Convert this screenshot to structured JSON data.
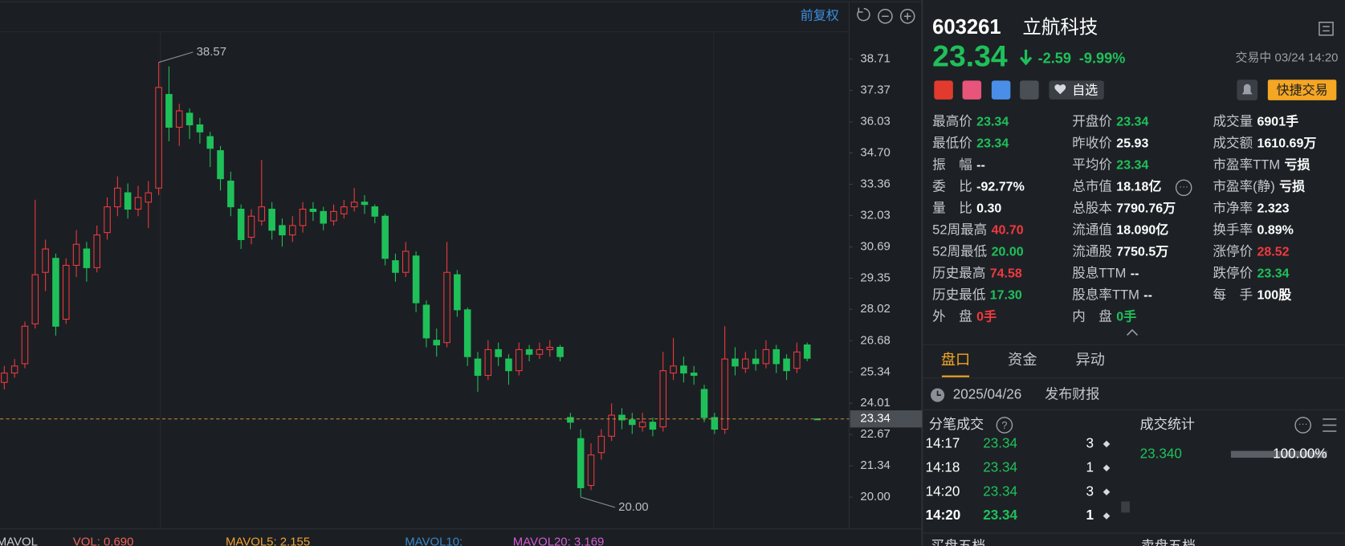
{
  "chart_data": {
    "type": "candlestick",
    "adjust_label": "前复权",
    "ylim": [
      18.9,
      39.77
    ],
    "yticks": [
      38.71,
      37.37,
      36.03,
      {
        "value": 34.7,
        "label": "34.70"
      },
      33.36,
      32.03,
      30.69,
      29.35,
      28.02,
      26.68,
      25.34,
      24.01,
      22.67,
      21.34,
      {
        "value": 20,
        "label": "20.00"
      }
    ],
    "last_price": 23.34,
    "annotations": [
      {
        "text": "38.57",
        "value": 38.57,
        "index": 15
      },
      {
        "text": "20.00",
        "value": 20,
        "index": 56
      }
    ],
    "up_color": "#f0393f",
    "down_color": "#1fc05a",
    "series": [
      {
        "open": [
          24.9,
          25.3,
          25.7,
          27.4,
          29.6,
          30.2,
          27.6,
          29.9,
          30.6,
          29.8,
          31.3,
          32.4,
          33.0,
          32.3,
          32.6,
          33.2,
          37.2,
          35.8,
          36.4,
          35.9,
          35.4,
          34.8,
          33.5,
          32.3,
          31.1,
          31.8,
          32.3,
          31.6,
          31.2,
          31.6,
          32.3,
          32.2,
          31.8,
          32.1,
          32.4,
          32.6,
          32.4,
          32.0,
          30.1,
          29.6,
          30.3,
          28.2,
          26.7,
          26.6,
          29.5,
          28.0,
          25.9,
          25.2,
          26.3,
          25.9,
          25.4,
          26.3,
          26.1,
          26.3,
          26.4,
          23.4,
          22.5,
          20.5,
          21.9,
          22.6,
          23.5,
          23.3,
          23.0,
          23.2,
          23.0,
          25.3,
          25.6,
          25.3,
          24.6,
          23.4,
          22.9,
          25.9,
          25.5,
          25.9,
          25.7,
          26.3,
          25.9,
          25.5,
          26.5,
          23.34
        ],
        "high": [
          25.6,
          25.9,
          27.5,
          32.7,
          31.0,
          30.4,
          30.2,
          31.4,
          30.9,
          31.6,
          32.8,
          33.7,
          33.4,
          33.3,
          33.5,
          38.57,
          38.4,
          36.8,
          36.6,
          36.2,
          35.6,
          35.0,
          33.9,
          32.5,
          32.3,
          34.4,
          32.6,
          31.9,
          32.0,
          32.6,
          32.6,
          32.4,
          32.5,
          32.7,
          33.2,
          32.9,
          32.5,
          32.1,
          30.4,
          30.9,
          30.5,
          28.4,
          27.2,
          30.9,
          29.7,
          28.1,
          26.2,
          26.7,
          26.6,
          26.1,
          26.6,
          26.5,
          26.6,
          26.7,
          26.5,
          23.6,
          22.9,
          22.3,
          22.9,
          24.0,
          23.8,
          23.6,
          23.6,
          23.4,
          26.2,
          26.8,
          26.0,
          25.6,
          24.8,
          23.6,
          27.3,
          26.4,
          26.2,
          26.3,
          26.7,
          26.5,
          26.1,
          26.6,
          26.6,
          23.34
        ],
        "low": [
          24.6,
          25.1,
          25.5,
          27.2,
          28.8,
          26.9,
          27.4,
          29.4,
          29.2,
          29.6,
          31.0,
          32.0,
          31.9,
          32.0,
          31.5,
          32.9,
          35.2,
          35.0,
          35.3,
          35.1,
          34.1,
          33.1,
          32.0,
          30.6,
          30.8,
          31.6,
          31.0,
          30.7,
          30.9,
          31.3,
          31.8,
          31.4,
          31.6,
          31.9,
          32.2,
          32.1,
          31.7,
          29.9,
          29.2,
          29.4,
          27.9,
          26.4,
          26.0,
          26.4,
          27.7,
          25.6,
          24.5,
          25.0,
          25.6,
          24.8,
          25.2,
          25.8,
          25.9,
          26.0,
          25.8,
          22.9,
          20,
          20.3,
          21.6,
          22.4,
          22.9,
          22.7,
          22.8,
          22.6,
          22.8,
          25.0,
          24.9,
          24.8,
          23.2,
          22.7,
          22.7,
          25.2,
          25.3,
          25.4,
          25.5,
          25.3,
          25.0,
          25.3,
          25.8,
          23.34
        ],
        "close": [
          25.3,
          25.6,
          27.3,
          29.5,
          30.6,
          27.3,
          29.9,
          30.8,
          29.8,
          31.2,
          32.4,
          33.2,
          32.3,
          32.8,
          33.0,
          37.5,
          35.8,
          36.5,
          35.9,
          35.6,
          34.9,
          33.6,
          32.4,
          31.0,
          32.0,
          32.4,
          31.4,
          31.2,
          31.6,
          32.3,
          32.2,
          31.7,
          32.2,
          32.4,
          32.6,
          32.5,
          32.0,
          30.2,
          29.6,
          30.5,
          28.3,
          26.8,
          26.5,
          29.6,
          28.0,
          26.0,
          25.2,
          26.3,
          26.0,
          25.4,
          26.3,
          26.1,
          26.3,
          26.4,
          26.0,
          23.2,
          20.4,
          21.8,
          22.6,
          23.5,
          23.3,
          23.1,
          23.2,
          22.9,
          25.4,
          25.6,
          25.3,
          25.2,
          23.4,
          22.9,
          25.9,
          25.6,
          25.9,
          25.7,
          26.3,
          25.7,
          25.4,
          26.2,
          25.93,
          23.34
        ]
      }
    ],
    "indicators": [
      {
        "text": "MAVOL",
        "color": "#c9ccd0"
      },
      {
        "text": "VOL: 0.690",
        "color": "#f0605a"
      },
      {
        "text": "MAVOL5: 2.155",
        "color": "#f0a030"
      },
      {
        "text": "MAVOL10:",
        "color": "#3a86c8"
      },
      {
        "text": "MAVOL20: 3.169",
        "color": "#d45ad4"
      }
    ]
  },
  "header": {
    "code": "603261",
    "name": "立航科技",
    "price": "23.34",
    "change": "-2.59",
    "change_pct": "-9.99%",
    "status": "交易中 03/24 14:20",
    "watch": "自选",
    "quick_trade": "快捷交易"
  },
  "colors": {
    "up": "#f0393f",
    "down": "#1fc05a",
    "flat": "#ffffff"
  },
  "stats": [
    [
      {
        "label": "最高价",
        "value": "23.34",
        "tone": "down"
      },
      {
        "label": "最低价",
        "value": "23.34",
        "tone": "down"
      },
      {
        "label": "振　幅",
        "value": "--",
        "tone": "flat"
      },
      {
        "label": "委　比",
        "value": "-92.77%",
        "tone": "flat"
      },
      {
        "label": "量　比",
        "value": "0.30",
        "tone": "flat"
      },
      {
        "label": "52周最高",
        "value": "40.70",
        "tone": "up"
      },
      {
        "label": "52周最低",
        "value": "20.00",
        "tone": "down"
      },
      {
        "label": "历史最高",
        "value": "74.58",
        "tone": "up"
      },
      {
        "label": "历史最低",
        "value": "17.30",
        "tone": "down"
      },
      {
        "label": "外　盘",
        "value": "0手",
        "tone": "up"
      }
    ],
    [
      {
        "label": "开盘价",
        "value": "23.34",
        "tone": "down"
      },
      {
        "label": "昨收价",
        "value": "25.93",
        "tone": "flat"
      },
      {
        "label": "平均价",
        "value": "23.34",
        "tone": "down"
      },
      {
        "label": "总市值",
        "value": "18.18亿",
        "tone": "flat"
      },
      {
        "label": "总股本",
        "value": "7790.76万",
        "tone": "flat"
      },
      {
        "label": "流通值",
        "value": "18.090亿",
        "tone": "flat"
      },
      {
        "label": "流通股",
        "value": "7750.5万",
        "tone": "flat"
      },
      {
        "label": "股息TTM",
        "value": "--",
        "tone": "flat"
      },
      {
        "label": "股息率TTM",
        "value": "--",
        "tone": "flat"
      },
      {
        "label": "内　盘",
        "value": "0手",
        "tone": "down"
      }
    ],
    [
      {
        "label": "成交量",
        "value": "6901手",
        "tone": "flat"
      },
      {
        "label": "成交额",
        "value": "1610.69万",
        "tone": "flat"
      },
      {
        "label": "市盈率TTM",
        "value": "亏损",
        "tone": "flat"
      },
      {
        "label": "市盈率(静)",
        "value": "亏损",
        "tone": "flat"
      },
      {
        "label": "市净率",
        "value": "2.323",
        "tone": "flat"
      },
      {
        "label": "换手率",
        "value": "0.89%",
        "tone": "flat"
      },
      {
        "label": "涨停价",
        "value": "28.52",
        "tone": "up"
      },
      {
        "label": "跌停价",
        "value": "23.34",
        "tone": "down"
      },
      {
        "label": "每　手",
        "value": "100股",
        "tone": "flat"
      }
    ]
  ],
  "tabs": [
    "盘口",
    "资金",
    "异动"
  ],
  "notice": {
    "date": "2025/04/26",
    "text": "发布财报"
  },
  "trades": {
    "title": "分笔成交",
    "rows": [
      [
        "14:17",
        "23.34",
        "3"
      ],
      [
        "14:18",
        "23.34",
        "1"
      ],
      [
        "14:20",
        "23.34",
        "3"
      ],
      [
        "14:20",
        "23.34",
        "1"
      ]
    ]
  },
  "deal_stats": {
    "title": "成交统计",
    "price": "23.340",
    "share": "100.00%"
  },
  "depth": {
    "buy": "买盘五档",
    "sell": "卖盘五档"
  }
}
